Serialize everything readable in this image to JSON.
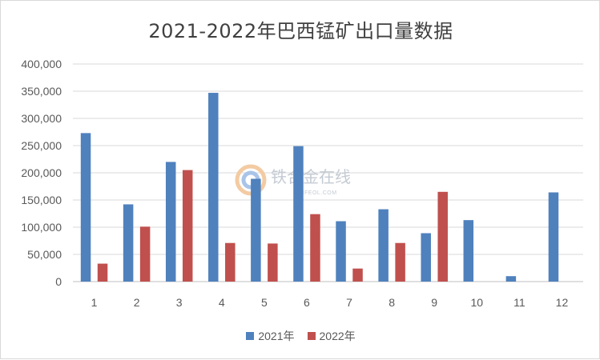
{
  "chart_data": {
    "type": "bar",
    "title": "2021-2022年巴西锰矿出口量数据",
    "categories": [
      "1",
      "2",
      "3",
      "4",
      "5",
      "6",
      "7",
      "8",
      "9",
      "10",
      "11",
      "12"
    ],
    "series": [
      {
        "name": "2021年",
        "color": "#4f81bd",
        "values": [
          273000,
          142000,
          220000,
          347000,
          189000,
          249000,
          111000,
          133000,
          89000,
          113000,
          10000,
          164000
        ]
      },
      {
        "name": "2022年",
        "color": "#c0504d",
        "values": [
          33000,
          101000,
          205000,
          71000,
          70000,
          124000,
          24000,
          71000,
          165000,
          null,
          null,
          null
        ]
      }
    ],
    "ylim": [
      0,
      400000
    ],
    "yticks": [
      "0",
      "50,000",
      "100,000",
      "150,000",
      "200,000",
      "250,000",
      "300,000",
      "350,000",
      "400,000"
    ],
    "grid": true,
    "legend_position": "bottom"
  },
  "watermark": {
    "brand": "铁合金在线",
    "site": "CIFEOL.COM"
  }
}
